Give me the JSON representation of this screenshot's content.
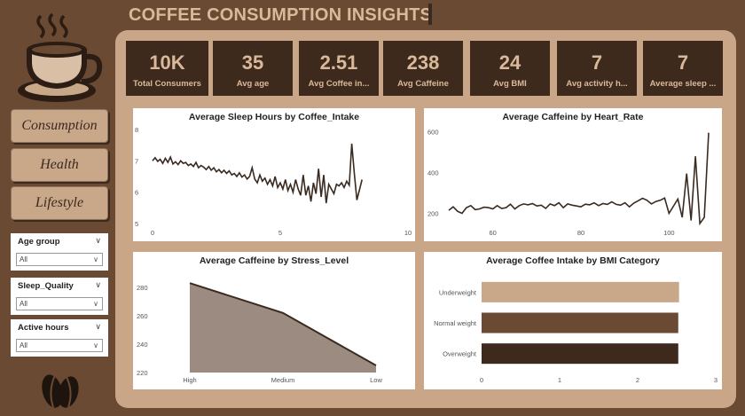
{
  "header": {
    "title": "COFFEE CONSUMPTION INSIGHTS"
  },
  "nav": [
    {
      "label": "Consumption"
    },
    {
      "label": "Health"
    },
    {
      "label": "Lifestyle"
    }
  ],
  "filters": [
    {
      "label": "Age group",
      "value": "All"
    },
    {
      "label": "Sleep_Quality",
      "value": "All"
    },
    {
      "label": "Active hours",
      "value": "All"
    }
  ],
  "kpis": [
    {
      "value": "10K",
      "label": "Total Consumers"
    },
    {
      "value": "35",
      "label": "Avg age"
    },
    {
      "value": "2.51",
      "label": "Avg Coffee in..."
    },
    {
      "value": "238",
      "label": "Avg Caffeine"
    },
    {
      "value": "24",
      "label": "Avg BMI"
    },
    {
      "value": "7",
      "label": "Avg activity h..."
    },
    {
      "value": "7",
      "label": "Average sleep ..."
    }
  ],
  "colors": {
    "bar_underweight": "#c9a789",
    "bar_normal": "#6b4a33",
    "bar_overweight": "#3d2a1d",
    "line": "#3a2a20",
    "area": "#9b8b80"
  },
  "chart_data": [
    {
      "type": "line",
      "title": "Average Sleep Hours by Coffee_Intake",
      "xlim": [
        0,
        10
      ],
      "ylim": [
        5,
        8
      ],
      "xticks": [
        0,
        5,
        10
      ],
      "yticks": [
        5,
        6,
        7,
        8
      ],
      "x": [
        0,
        0.1,
        0.2,
        0.3,
        0.4,
        0.5,
        0.6,
        0.7,
        0.8,
        0.9,
        1,
        1.1,
        1.2,
        1.3,
        1.4,
        1.5,
        1.6,
        1.7,
        1.8,
        1.9,
        2,
        2.1,
        2.2,
        2.3,
        2.4,
        2.5,
        2.6,
        2.7,
        2.8,
        2.9,
        3,
        3.1,
        3.2,
        3.3,
        3.4,
        3.5,
        3.6,
        3.7,
        3.8,
        3.9,
        4,
        4.1,
        4.2,
        4.3,
        4.4,
        4.5,
        4.6,
        4.7,
        4.8,
        4.9,
        5,
        5.1,
        5.2,
        5.3,
        5.4,
        5.5,
        5.6,
        5.7,
        5.8,
        5.9,
        6,
        6.1,
        6.2,
        6.3,
        6.4,
        6.5,
        6.6,
        6.7,
        6.8,
        6.9,
        7,
        7.1,
        7.2,
        7.3,
        7.4,
        7.5,
        7.6,
        7.7,
        7.8,
        7.9,
        8.0,
        8.2
      ],
      "y": [
        7.0,
        7.1,
        6.98,
        7.05,
        6.92,
        7.08,
        6.95,
        7.12,
        6.9,
        6.97,
        6.88,
        7.0,
        6.92,
        6.95,
        6.85,
        6.9,
        6.82,
        6.95,
        6.78,
        6.85,
        6.8,
        6.72,
        6.82,
        6.7,
        6.78,
        6.65,
        6.72,
        6.62,
        6.7,
        6.6,
        6.68,
        6.55,
        6.6,
        6.5,
        6.62,
        6.48,
        6.55,
        6.42,
        6.5,
        6.78,
        6.42,
        6.3,
        6.55,
        6.35,
        6.45,
        6.25,
        6.4,
        6.2,
        6.5,
        6.15,
        6.3,
        6.1,
        6.4,
        6.05,
        6.25,
        6.0,
        6.4,
        6.1,
        5.9,
        6.55,
        5.9,
        6.2,
        5.7,
        6.3,
        5.95,
        6.75,
        5.85,
        6.55,
        5.65,
        6.25,
        6.1,
        5.95,
        6.25,
        6.2,
        6.3,
        6.15,
        6.35,
        6.22,
        7.55,
        6.6,
        5.75,
        6.4
      ]
    },
    {
      "type": "line",
      "title": "Average Caffeine by Heart_Rate",
      "xlim": [
        50,
        110
      ],
      "ylim": [
        150,
        620
      ],
      "xticks": [
        60,
        80,
        100
      ],
      "yticks": [
        200,
        400,
        600
      ],
      "x": [
        50,
        51,
        52,
        53,
        54,
        55,
        56,
        57,
        58,
        59,
        60,
        61,
        62,
        63,
        64,
        65,
        66,
        67,
        68,
        69,
        70,
        71,
        72,
        73,
        74,
        75,
        76,
        77,
        78,
        79,
        80,
        81,
        82,
        83,
        84,
        85,
        86,
        87,
        88,
        89,
        90,
        91,
        92,
        93,
        94,
        95,
        96,
        97,
        98,
        99,
        100,
        101,
        102,
        103,
        104,
        105,
        106,
        107,
        108,
        109
      ],
      "y": [
        215,
        232,
        210,
        200,
        228,
        238,
        218,
        222,
        230,
        228,
        222,
        238,
        224,
        228,
        245,
        222,
        238,
        246,
        242,
        248,
        236,
        240,
        224,
        246,
        238,
        252,
        228,
        246,
        240,
        236,
        232,
        245,
        242,
        252,
        238,
        248,
        244,
        256,
        244,
        240,
        252,
        232,
        250,
        262,
        274,
        264,
        246,
        258,
        264,
        275,
        200,
        235,
        270,
        180,
        395,
        165,
        480,
        150,
        180,
        595
      ]
    },
    {
      "type": "area",
      "title": "Average Caffeine by Stress_Level",
      "categories": [
        "High",
        "Medium",
        "Low"
      ],
      "values": [
        283,
        262,
        225
      ],
      "ylim": [
        220,
        290
      ],
      "yticks": [
        220,
        240,
        260,
        280
      ]
    },
    {
      "type": "bar",
      "title": "Average Coffee Intake by BMI Category",
      "categories": [
        "Underweight",
        "Normal weight",
        "Overweight"
      ],
      "values": [
        2.53,
        2.52,
        2.52
      ],
      "xlim": [
        0,
        3
      ],
      "xticks": [
        0,
        1,
        2,
        3
      ]
    }
  ]
}
